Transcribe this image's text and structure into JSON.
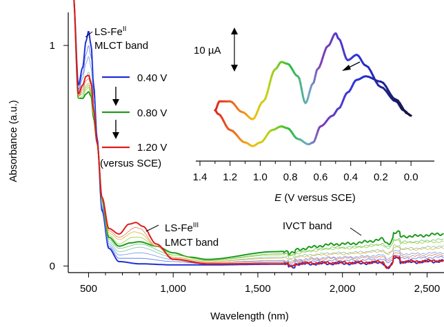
{
  "chart_data": [
    {
      "type": "line",
      "xlabel": "Wavelength (nm)",
      "ylabel": "Absorbance (a.u.)",
      "xlim": [
        380,
        2600
      ],
      "ylim": [
        -0.03,
        1.15
      ],
      "xticks": [
        500,
        1000,
        1500,
        2000,
        2500
      ],
      "xtick_labels": [
        "500",
        "1,000",
        "1,500",
        "2,000",
        "2,500"
      ],
      "yticks": [
        0,
        1
      ],
      "ytick_labels": [
        "0",
        "1"
      ],
      "grid": false,
      "legend": {
        "placement": "center-left",
        "entries": [
          {
            "label": "0.40 V",
            "color": "#1f2fd6"
          },
          {
            "label": "0.80 V",
            "color": "#1a9a1a"
          },
          {
            "label": "1.20 V",
            "color": "#e01a1a"
          }
        ],
        "footer": "(versus SCE)"
      },
      "annotations": {
        "mlct_line1_base": "LS-Fe",
        "mlct_line1_sup": "II",
        "mlct_line2": "MLCT band",
        "lmct_line1_base": "LS-Fe",
        "lmct_line1_sup": "III",
        "lmct_line2": "LMCT band",
        "ivct": "IVCT band"
      },
      "series": [
        {
          "name": "0.40 V",
          "color": "#1f2fd6",
          "weight": 2.0,
          "points": [
            [
              410,
              1.23
            ],
            [
              440,
              0.82
            ],
            [
              465,
              0.9
            ],
            [
              485,
              1.02
            ],
            [
              500,
              1.065
            ],
            [
              515,
              1.0
            ],
            [
              530,
              0.82
            ],
            [
              550,
              0.58
            ],
            [
              580,
              0.25
            ],
            [
              620,
              0.08
            ],
            [
              680,
              0.02
            ],
            [
              800,
              0.01
            ],
            [
              1000,
              0.005
            ],
            [
              1200,
              0.005
            ],
            [
              1600,
              0.008
            ],
            [
              2000,
              0.012
            ],
            [
              2400,
              0.018
            ],
            [
              2600,
              0.022
            ]
          ]
        },
        {
          "name": "",
          "color": "#4a6fe8",
          "weight": 0.8,
          "points": [
            [
              410,
              1.23
            ],
            [
              440,
              0.8
            ],
            [
              465,
              0.87
            ],
            [
              485,
              0.96
            ],
            [
              500,
              1.0
            ],
            [
              515,
              0.95
            ],
            [
              530,
              0.78
            ],
            [
              550,
              0.57
            ],
            [
              580,
              0.26
            ],
            [
              620,
              0.09
            ],
            [
              680,
              0.035
            ],
            [
              800,
              0.035
            ],
            [
              1000,
              0.02
            ],
            [
              1200,
              0.01
            ],
            [
              1600,
              0.015
            ],
            [
              2000,
              0.025
            ],
            [
              2400,
              0.035
            ],
            [
              2600,
              0.04
            ]
          ]
        },
        {
          "name": "",
          "color": "#6f93e6",
          "weight": 0.8,
          "points": [
            [
              410,
              1.23
            ],
            [
              440,
              0.79
            ],
            [
              465,
              0.85
            ],
            [
              485,
              0.92
            ],
            [
              500,
              0.95
            ],
            [
              515,
              0.9
            ],
            [
              530,
              0.75
            ],
            [
              550,
              0.57
            ],
            [
              580,
              0.27
            ],
            [
              620,
              0.1
            ],
            [
              680,
              0.05
            ],
            [
              800,
              0.06
            ],
            [
              1000,
              0.03
            ],
            [
              1200,
              0.015
            ],
            [
              1600,
              0.025
            ],
            [
              2000,
              0.04
            ],
            [
              2400,
              0.055
            ],
            [
              2600,
              0.06
            ]
          ]
        },
        {
          "name": "",
          "color": "#7fbfb0",
          "weight": 0.8,
          "points": [
            [
              410,
              1.23
            ],
            [
              440,
              0.78
            ],
            [
              465,
              0.81
            ],
            [
              485,
              0.86
            ],
            [
              500,
              0.88
            ],
            [
              515,
              0.84
            ],
            [
              530,
              0.71
            ],
            [
              550,
              0.56
            ],
            [
              580,
              0.28
            ],
            [
              620,
              0.11
            ],
            [
              680,
              0.065
            ],
            [
              800,
              0.085
            ],
            [
              1000,
              0.04
            ],
            [
              1200,
              0.02
            ],
            [
              1600,
              0.04
            ],
            [
              2000,
              0.06
            ],
            [
              2400,
              0.08
            ],
            [
              2600,
              0.09
            ]
          ]
        },
        {
          "name": "",
          "color": "#66c266",
          "weight": 0.8,
          "points": [
            [
              410,
              1.23
            ],
            [
              440,
              0.77
            ],
            [
              465,
              0.78
            ],
            [
              485,
              0.81
            ],
            [
              500,
              0.82
            ],
            [
              515,
              0.79
            ],
            [
              530,
              0.68
            ],
            [
              550,
              0.56
            ],
            [
              580,
              0.29
            ],
            [
              620,
              0.12
            ],
            [
              680,
              0.08
            ],
            [
              800,
              0.1
            ],
            [
              1000,
              0.05
            ],
            [
              1200,
              0.025
            ],
            [
              1600,
              0.055
            ],
            [
              2000,
              0.085
            ],
            [
              2400,
              0.11
            ],
            [
              2600,
              0.12
            ]
          ]
        },
        {
          "name": "0.80 V",
          "color": "#1a9a1a",
          "weight": 2.0,
          "points": [
            [
              410,
              1.23
            ],
            [
              440,
              0.76
            ],
            [
              465,
              0.76
            ],
            [
              485,
              0.78
            ],
            [
              500,
              0.79
            ],
            [
              515,
              0.77
            ],
            [
              530,
              0.67
            ],
            [
              550,
              0.56
            ],
            [
              580,
              0.3
            ],
            [
              620,
              0.13
            ],
            [
              680,
              0.09
            ],
            [
              750,
              0.105
            ],
            [
              800,
              0.11
            ],
            [
              900,
              0.09
            ],
            [
              1000,
              0.06
            ],
            [
              1100,
              0.04
            ],
            [
              1200,
              0.03
            ],
            [
              1600,
              0.065
            ],
            [
              2000,
              0.1
            ],
            [
              2400,
              0.135
            ],
            [
              2600,
              0.145
            ]
          ]
        },
        {
          "name": "",
          "color": "#9acd32",
          "weight": 0.8,
          "points": [
            [
              410,
              1.23
            ],
            [
              440,
              0.76
            ],
            [
              465,
              0.77
            ],
            [
              485,
              0.8
            ],
            [
              500,
              0.81
            ],
            [
              515,
              0.78
            ],
            [
              530,
              0.68
            ],
            [
              550,
              0.56
            ],
            [
              580,
              0.3
            ],
            [
              620,
              0.14
            ],
            [
              680,
              0.1
            ],
            [
              760,
              0.13
            ],
            [
              800,
              0.13
            ],
            [
              900,
              0.09
            ],
            [
              1000,
              0.05
            ],
            [
              1200,
              0.025
            ],
            [
              1600,
              0.05
            ],
            [
              2000,
              0.08
            ],
            [
              2400,
              0.105
            ],
            [
              2600,
              0.11
            ]
          ]
        },
        {
          "name": "",
          "color": "#d9b33a",
          "weight": 0.8,
          "points": [
            [
              410,
              1.23
            ],
            [
              440,
              0.77
            ],
            [
              465,
              0.79
            ],
            [
              485,
              0.82
            ],
            [
              500,
              0.83
            ],
            [
              515,
              0.8
            ],
            [
              530,
              0.69
            ],
            [
              550,
              0.56
            ],
            [
              580,
              0.3
            ],
            [
              620,
              0.15
            ],
            [
              680,
              0.12
            ],
            [
              770,
              0.155
            ],
            [
              800,
              0.15
            ],
            [
              900,
              0.09
            ],
            [
              1000,
              0.04
            ],
            [
              1200,
              0.02
            ],
            [
              1600,
              0.035
            ],
            [
              2000,
              0.055
            ],
            [
              2400,
              0.075
            ],
            [
              2600,
              0.08
            ]
          ]
        },
        {
          "name": "",
          "color": "#e07a55",
          "weight": 0.8,
          "points": [
            [
              410,
              1.23
            ],
            [
              440,
              0.77
            ],
            [
              465,
              0.8
            ],
            [
              485,
              0.84
            ],
            [
              500,
              0.85
            ],
            [
              515,
              0.82
            ],
            [
              530,
              0.7
            ],
            [
              550,
              0.56
            ],
            [
              580,
              0.31
            ],
            [
              620,
              0.16
            ],
            [
              680,
              0.13
            ],
            [
              780,
              0.175
            ],
            [
              800,
              0.17
            ],
            [
              900,
              0.09
            ],
            [
              1000,
              0.035
            ],
            [
              1200,
              0.015
            ],
            [
              1600,
              0.02
            ],
            [
              2000,
              0.035
            ],
            [
              2400,
              0.045
            ],
            [
              2600,
              0.05
            ]
          ]
        },
        {
          "name": "1.20 V",
          "color": "#e01a1a",
          "weight": 2.0,
          "points": [
            [
              410,
              1.23
            ],
            [
              440,
              0.78
            ],
            [
              465,
              0.82
            ],
            [
              485,
              0.86
            ],
            [
              500,
              0.865
            ],
            [
              515,
              0.83
            ],
            [
              530,
              0.71
            ],
            [
              550,
              0.56
            ],
            [
              580,
              0.31
            ],
            [
              620,
              0.17
            ],
            [
              680,
              0.145
            ],
            [
              740,
              0.19
            ],
            [
              780,
              0.197
            ],
            [
              820,
              0.18
            ],
            [
              900,
              0.1
            ],
            [
              1000,
              0.03
            ],
            [
              1200,
              0.01
            ],
            [
              1600,
              0.01
            ],
            [
              2000,
              0.015
            ],
            [
              2400,
              0.02
            ],
            [
              2600,
              0.025
            ]
          ]
        }
      ]
    },
    {
      "type": "line",
      "subtype": "cyclic-voltammogram",
      "xlabel_italic": "E",
      "xlabel_rest": " (V versus SCE)",
      "xlim": [
        1.4,
        -0.1
      ],
      "x_reversed": true,
      "xticks": [
        1.4,
        1.2,
        1.0,
        0.8,
        0.6,
        0.4,
        0.2,
        0.0
      ],
      "xtick_labels": [
        "1.4",
        "1.2",
        "1.0",
        "0.8",
        "0.6",
        "0.4",
        "0.2",
        "0.0"
      ],
      "y_scale_bar": "10 µA",
      "scan_arrow": "pointing toward positive potentials along the lower trace",
      "color_gradient": "blue near 0.4 V through green near 0.8 V to red near 1.3 V",
      "grid": false,
      "trace_upper": [
        [
          0.0,
          1.0
        ],
        [
          0.05,
          0.85
        ],
        [
          0.1,
          0.6
        ],
        [
          0.2,
          0.2
        ],
        [
          0.3,
          -0.4
        ],
        [
          0.36,
          -0.7
        ],
        [
          0.42,
          -0.55
        ],
        [
          0.48,
          -1.15
        ],
        [
          0.5,
          -1.3
        ],
        [
          0.55,
          -0.95
        ],
        [
          0.62,
          -0.3
        ],
        [
          0.65,
          0.1
        ],
        [
          0.7,
          0.65
        ],
        [
          0.75,
          -0.1
        ],
        [
          0.82,
          -0.45
        ],
        [
          0.86,
          -0.5
        ],
        [
          0.9,
          -0.3
        ],
        [
          0.98,
          0.6
        ],
        [
          1.05,
          1.1
        ],
        [
          1.12,
          0.9
        ],
        [
          1.2,
          0.6
        ],
        [
          1.27,
          0.6
        ],
        [
          1.3,
          0.85
        ]
      ],
      "trace_lower": [
        [
          1.3,
          0.85
        ],
        [
          1.28,
          0.95
        ],
        [
          1.2,
          1.4
        ],
        [
          1.1,
          1.75
        ],
        [
          1.05,
          1.85
        ],
        [
          1.0,
          1.75
        ],
        [
          0.92,
          1.4
        ],
        [
          0.86,
          1.3
        ],
        [
          0.82,
          1.35
        ],
        [
          0.75,
          1.65
        ],
        [
          0.68,
          1.8
        ],
        [
          0.65,
          1.75
        ],
        [
          0.6,
          1.3
        ],
        [
          0.52,
          1.0
        ],
        [
          0.48,
          0.8
        ],
        [
          0.42,
          0.35
        ],
        [
          0.36,
          0.0
        ],
        [
          0.3,
          -0.1
        ],
        [
          0.2,
          0.05
        ],
        [
          0.1,
          0.55
        ],
        [
          0.02,
          0.95
        ],
        [
          0.0,
          1.0
        ]
      ]
    }
  ]
}
